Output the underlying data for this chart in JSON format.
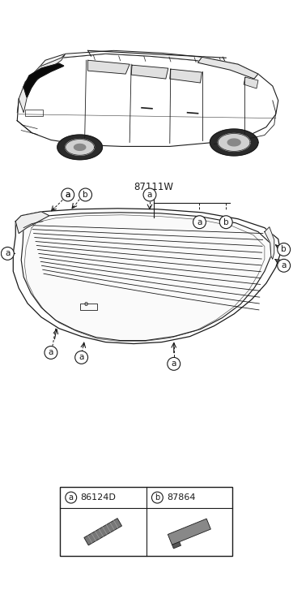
{
  "bg_color": "#ffffff",
  "line_color": "#1a1a1a",
  "part_number_main": "87111W",
  "legend_items": [
    {
      "label": "a",
      "code": "86124D"
    },
    {
      "label": "b",
      "code": "87864"
    }
  ]
}
